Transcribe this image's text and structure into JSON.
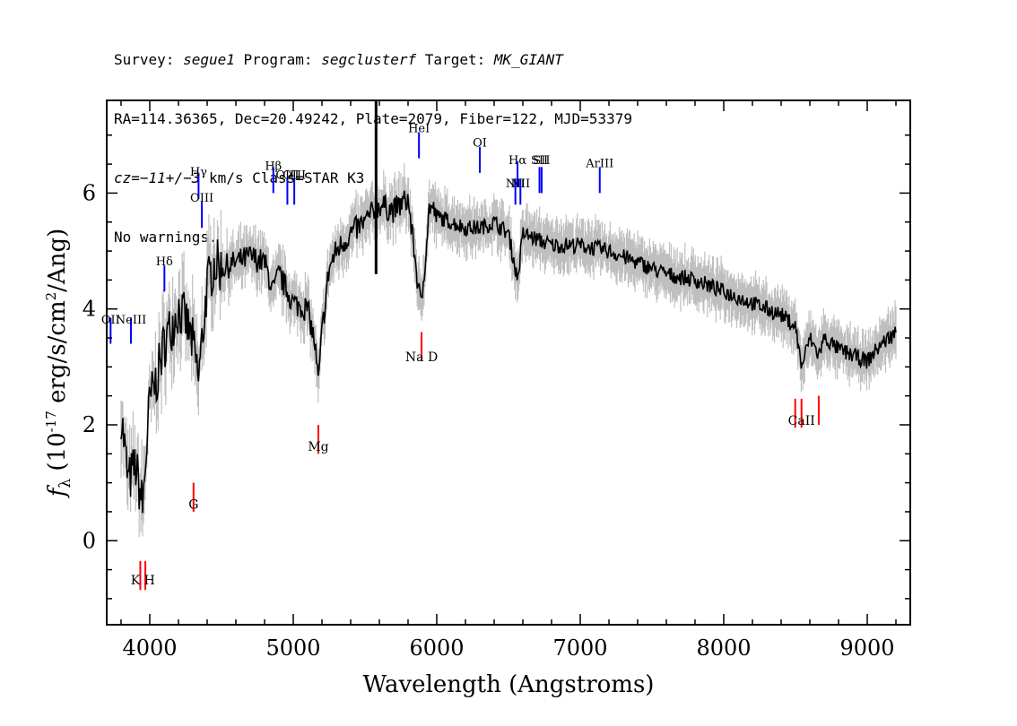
{
  "header": {
    "survey_prefix": "Survey: ",
    "survey": "segue1",
    "program_prefix": " Program: ",
    "program": "segclusterf",
    "target_prefix": " Target: ",
    "target": "MK_GIANT",
    "line2": "RA=114.36365, Dec=20.49242, Plate=2079, Fiber=122, MJD=53379",
    "cz_prefix": "cz=",
    "cz_value": "−11+/−3",
    "cz_suffix": " km/s Class=STAR K3",
    "line4": "No warnings."
  },
  "chart_data": {
    "type": "line",
    "xlabel": "Wavelength (Angstroms)",
    "ylabel": "f_λ (10^-17 erg/s/cm^2/Ang)",
    "xlim": [
      3700,
      9300
    ],
    "ylim": [
      -1.45,
      7.6
    ],
    "x_ticks": [
      4000,
      5000,
      6000,
      7000,
      8000,
      9000
    ],
    "y_ticks": [
      0,
      2,
      4,
      6
    ],
    "grid": false,
    "colors": {
      "flux": "#000000",
      "error": "#bfbfbf",
      "emission": "#0000ff",
      "absorption": "#ff0000"
    },
    "spectrum": {
      "x": [
        3800,
        3850,
        3900,
        3950,
        4000,
        4050,
        4100,
        4150,
        4200,
        4250,
        4300,
        4340,
        4400,
        4450,
        4500,
        4600,
        4700,
        4800,
        4861,
        4900,
        5000,
        5100,
        5150,
        5175,
        5200,
        5250,
        5300,
        5400,
        5500,
        5600,
        5700,
        5800,
        5890,
        5950,
        6000,
        6100,
        6200,
        6300,
        6400,
        6500,
        6563,
        6600,
        6700,
        6800,
        7000,
        7200,
        7400,
        7600,
        7800,
        8000,
        8200,
        8400,
        8500,
        8542,
        8600,
        8662,
        8700,
        8800,
        9000,
        9100,
        9200
      ],
      "flux": [
        2.2,
        1.0,
        1.3,
        0.6,
        2.4,
        2.8,
        3.4,
        3.7,
        4.0,
        3.8,
        3.4,
        2.8,
        4.4,
        4.8,
        4.7,
        4.8,
        4.9,
        4.8,
        4.3,
        4.6,
        4.1,
        4.0,
        3.4,
        2.7,
        3.6,
        4.7,
        5.0,
        5.3,
        5.5,
        5.8,
        5.7,
        5.9,
        4.0,
        5.8,
        5.6,
        5.5,
        5.4,
        5.4,
        5.5,
        5.3,
        4.5,
        5.3,
        5.2,
        5.1,
        5.1,
        5.0,
        4.8,
        4.6,
        4.5,
        4.3,
        4.1,
        3.9,
        3.7,
        3.0,
        3.5,
        3.2,
        3.5,
        3.3,
        3.1,
        3.4,
        3.6
      ]
    },
    "emission_lines": [
      {
        "label": "OII",
        "wavelength": 3727,
        "marker_y": 3.4,
        "label_y": 3.75
      },
      {
        "label": "NeIII",
        "wavelength": 3869,
        "marker_y": 3.4,
        "label_y": 3.75
      },
      {
        "label": "Hδ",
        "wavelength": 4102,
        "marker_y": 4.3,
        "label_y": 4.75
      },
      {
        "label": "Hγ",
        "wavelength": 4340,
        "marker_y": 5.9,
        "label_y": 6.3
      },
      {
        "label": "OIII",
        "wavelength": 4363,
        "marker_y": 5.4,
        "label_y": 5.85
      },
      {
        "label": "Hβ",
        "wavelength": 4861,
        "marker_y": 6.0,
        "label_y": 6.4
      },
      {
        "label": "OIII",
        "wavelength": 4959,
        "marker_y": 5.8,
        "label_y": 6.25
      },
      {
        "label": "OIII",
        "wavelength": 5007,
        "marker_y": 5.8,
        "label_y": 6.25
      },
      {
        "label": "HeI",
        "wavelength": 5876,
        "marker_y": 6.6,
        "label_y": 7.05
      },
      {
        "label": "OI",
        "wavelength": 6300,
        "marker_y": 6.35,
        "label_y": 6.8
      },
      {
        "label": "NII",
        "wavelength": 6548,
        "marker_y": 5.8,
        "label_y": 6.1
      },
      {
        "label": "Hα",
        "wavelength": 6563,
        "marker_y": 6.1,
        "label_y": 6.5
      },
      {
        "label": "NII",
        "wavelength": 6583,
        "marker_y": 5.8,
        "label_y": 6.1
      },
      {
        "label": "SII",
        "wavelength": 6716,
        "marker_y": 6.0,
        "label_y": 6.5
      },
      {
        "label": "SII",
        "wavelength": 6731,
        "marker_y": 6.0,
        "label_y": 6.5
      },
      {
        "label": "ArIII",
        "wavelength": 7136,
        "marker_y": 6.0,
        "label_y": 6.45
      }
    ],
    "absorption_lines": [
      {
        "label": "K",
        "wavelength": 3934,
        "marker_y": -0.35,
        "label_y": -0.75
      },
      {
        "label": "H",
        "wavelength": 3969,
        "marker_y": -0.35,
        "label_y": -0.75
      },
      {
        "label": "G",
        "wavelength": 4305,
        "marker_y": 1.0,
        "label_y": 0.55
      },
      {
        "label": "Mg",
        "wavelength": 5175,
        "marker_y": 2.0,
        "label_y": 1.55
      },
      {
        "label": "Na",
        "wavelength": 5894,
        "marker_y": 3.6,
        "label_y": 3.1
      },
      {
        "label": "CaII",
        "wavelength": 8498,
        "marker_y": 2.45,
        "label_y": 2.0
      },
      {
        "label": "CaII",
        "wavelength": 8542,
        "marker_y": 2.45,
        "label_y": 2.0
      },
      {
        "label": "CaII",
        "wavelength": 8662,
        "marker_y": 2.5,
        "label_y": 2.0
      }
    ],
    "absorption_label_texts": [
      {
        "text": "K H",
        "wavelength": 3952,
        "label_y": -0.75
      },
      {
        "text": "G",
        "wavelength": 4305,
        "label_y": 0.55
      },
      {
        "text": "Mg",
        "wavelength": 5175,
        "label_y": 1.55
      },
      {
        "text": "Na D",
        "wavelength": 5894,
        "label_y": 3.1
      },
      {
        "text": "CaII",
        "wavelength": 8542,
        "label_y": 2.0
      }
    ]
  }
}
